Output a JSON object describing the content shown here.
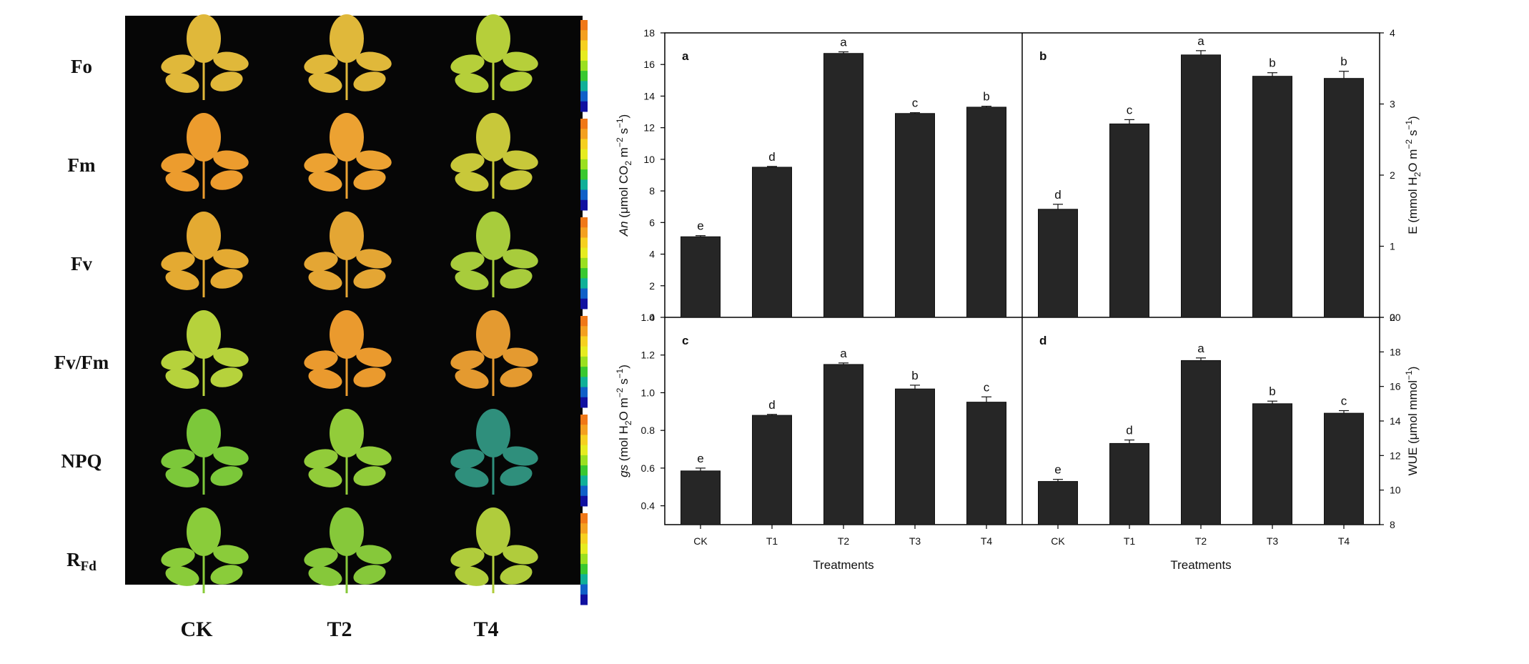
{
  "leaf_panel": {
    "row_labels": [
      {
        "main": "Fo",
        "sub": ""
      },
      {
        "main": "Fm",
        "sub": ""
      },
      {
        "main": "Fv",
        "sub": ""
      },
      {
        "main": "Fv/Fm",
        "sub": ""
      },
      {
        "main": "NPQ",
        "sub": ""
      },
      {
        "main": "R",
        "sub": "Fd"
      }
    ],
    "col_labels": [
      "CK",
      "T2",
      "T4"
    ],
    "leaf_colors": [
      [
        "#e0b83a",
        "#e0b83a",
        "#b6cf3a"
      ],
      [
        "#ec9c2e",
        "#eca232",
        "#c8c83a"
      ],
      [
        "#e4aa32",
        "#e4a634",
        "#a8cc3c"
      ],
      [
        "#b6d23c",
        "#ea9a2e",
        "#e49a30"
      ],
      [
        "#7cc83a",
        "#92cc3a",
        "#2f8f7c"
      ],
      [
        "#8acc3a",
        "#86c83a",
        "#b0cc3c"
      ]
    ],
    "colorbar_colors": [
      "#f07818",
      "#f4a020",
      "#f6d020",
      "#e6ec20",
      "#9ae020",
      "#38c830",
      "#10b098",
      "#1060c8",
      "#1010a0"
    ]
  },
  "chart_data": [
    {
      "type": "bar",
      "panel_label": "a",
      "categories": [
        "CK",
        "T1",
        "T2",
        "T3",
        "T4"
      ],
      "values": [
        5.1,
        9.5,
        16.7,
        12.9,
        13.3
      ],
      "errors": [
        0.07,
        0.05,
        0.1,
        0.05,
        0.06
      ],
      "significance": [
        "e",
        "d",
        "a",
        "c",
        "b"
      ],
      "ylabel": {
        "pre": "",
        "italic": "An",
        "post": " (μmol CO",
        "sub": "2",
        "post2": " m",
        "sup": "−2",
        "post3": " s",
        "sup2": "−1",
        "end": ")"
      },
      "ylim": [
        0,
        18
      ],
      "yticks": [
        "0",
        "2",
        "4",
        "6",
        "8",
        "10",
        "12",
        "14",
        "16",
        "18"
      ],
      "axis_side": "left",
      "xlabel": ""
    },
    {
      "type": "bar",
      "panel_label": "b",
      "categories": [
        "CK",
        "T1",
        "T2",
        "T3",
        "T4"
      ],
      "values": [
        1.52,
        2.72,
        3.69,
        3.39,
        3.36
      ],
      "errors": [
        0.07,
        0.06,
        0.06,
        0.05,
        0.1
      ],
      "significance": [
        "d",
        "c",
        "a",
        "b",
        "b"
      ],
      "ylabel": {
        "pre": "E (mmol H",
        "italic": "",
        "post": "",
        "sub": "2",
        "post2": "O m",
        "sup": "−2",
        "post3": " s",
        "sup2": "−1",
        "end": ")"
      },
      "ylim": [
        0,
        4
      ],
      "yticks": [
        "0",
        "1",
        "2",
        "3",
        "4"
      ],
      "axis_side": "right",
      "xlabel": ""
    },
    {
      "type": "bar",
      "panel_label": "c",
      "categories": [
        "CK",
        "T1",
        "T2",
        "T3",
        "T4"
      ],
      "values": [
        0.585,
        0.88,
        1.15,
        1.02,
        0.95
      ],
      "errors": [
        0.015,
        0.005,
        0.008,
        0.02,
        0.028
      ],
      "significance": [
        "e",
        "d",
        "a",
        "b",
        "c"
      ],
      "ylabel": {
        "pre": "",
        "italic": "gs",
        "post": " (mol H",
        "sub": "2",
        "post2": "O m",
        "sup": "−2",
        "post3": " s",
        "sup2": "−1",
        "end": ")"
      },
      "ylim": [
        0.3,
        1.4
      ],
      "yticks": [
        "0.4",
        "0.6",
        "0.8",
        "1.0",
        "1.2"
      ],
      "ytick_values": [
        0.4,
        0.6,
        0.8,
        1.0,
        1.2
      ],
      "top_tick": "1.4",
      "axis_side": "left",
      "xlabel": "Treatments"
    },
    {
      "type": "bar",
      "panel_label": "d",
      "categories": [
        "CK",
        "T1",
        "T2",
        "T3",
        "T4"
      ],
      "values": [
        10.5,
        12.7,
        17.5,
        15.0,
        14.45
      ],
      "errors": [
        0.12,
        0.2,
        0.15,
        0.15,
        0.15
      ],
      "significance": [
        "e",
        "d",
        "a",
        "b",
        "c"
      ],
      "ylabel": {
        "pre": "WUE (μmol mmol",
        "italic": "",
        "post": "",
        "sub": "",
        "post2": "",
        "sup": "−1",
        "post3": "",
        "sup2": "",
        "end": ")"
      },
      "ylim": [
        8,
        20
      ],
      "yticks": [
        "8",
        "10",
        "12",
        "14",
        "16",
        "18",
        "20"
      ],
      "axis_side": "right",
      "xlabel": "Treatments"
    }
  ]
}
